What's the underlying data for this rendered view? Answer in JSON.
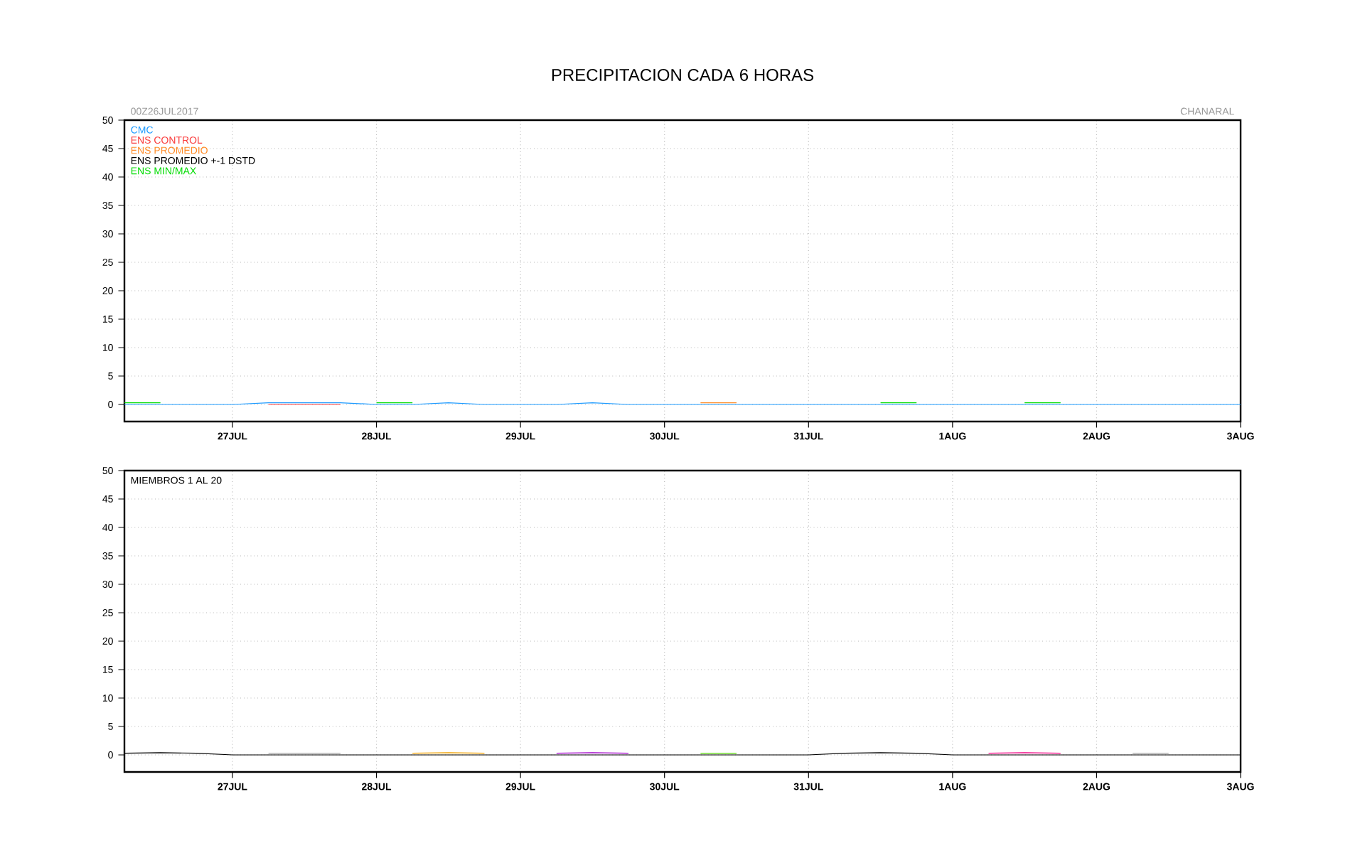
{
  "chart_data": [
    {
      "type": "line",
      "title": "PRECIPITACION CADA 6 HORAS",
      "annotations": [
        "00Z26JUL2017",
        "CHANARAL"
      ],
      "x": [
        "2017-07-26T06:00",
        "2017-07-26T12:00",
        "2017-07-26T18:00",
        "2017-07-27T00:00",
        "2017-07-27T06:00",
        "2017-07-27T12:00",
        "2017-07-27T18:00",
        "2017-07-28T00:00",
        "2017-07-28T06:00",
        "2017-07-28T12:00",
        "2017-07-28T18:00",
        "2017-07-29T00:00",
        "2017-07-29T06:00",
        "2017-07-29T12:00",
        "2017-07-29T18:00",
        "2017-07-30T00:00",
        "2017-07-30T06:00",
        "2017-07-30T12:00",
        "2017-07-30T18:00",
        "2017-07-31T00:00",
        "2017-07-31T06:00",
        "2017-07-31T12:00",
        "2017-07-31T18:00",
        "2017-08-01T00:00",
        "2017-08-01T06:00",
        "2017-08-01T12:00",
        "2017-08-01T18:00",
        "2017-08-02T00:00",
        "2017-08-02T06:00",
        "2017-08-02T12:00",
        "2017-08-02T18:00",
        "2017-08-03T00:00"
      ],
      "series": [
        {
          "name": "ENS MIN/MAX",
          "color": "#00dc00",
          "values": [
            0.3,
            0.3,
            null,
            null,
            null,
            null,
            null,
            0.3,
            0.3,
            null,
            null,
            null,
            null,
            null,
            null,
            null,
            null,
            null,
            null,
            null,
            null,
            0.3,
            0.3,
            null,
            null,
            0.3,
            0.3,
            null,
            null,
            null,
            null,
            null
          ]
        },
        {
          "name": "ENS PROMEDIO +-1 DSTD",
          "color": "#000000",
          "values": [
            null,
            null,
            null,
            null,
            null,
            null,
            null,
            null,
            null,
            null,
            null,
            null,
            null,
            null,
            null,
            null,
            null,
            null,
            null,
            null,
            null,
            null,
            null,
            null,
            null,
            null,
            null,
            null,
            null,
            null,
            null,
            null
          ]
        },
        {
          "name": "ENS PROMEDIO",
          "color": "#ff8c28",
          "values": [
            null,
            null,
            null,
            null,
            null,
            null,
            null,
            null,
            null,
            null,
            null,
            null,
            null,
            null,
            null,
            null,
            0.3,
            0.3,
            null,
            null,
            null,
            null,
            null,
            null,
            null,
            null,
            null,
            null,
            null,
            null,
            null,
            null
          ]
        },
        {
          "name": "ENS CONTROL",
          "color": "#fa3c3c",
          "values": [
            null,
            null,
            null,
            null,
            0,
            0,
            0,
            null,
            null,
            null,
            null,
            null,
            null,
            null,
            null,
            null,
            null,
            null,
            null,
            null,
            null,
            null,
            null,
            null,
            null,
            null,
            null,
            null,
            null,
            null,
            null,
            null
          ]
        },
        {
          "name": "CMC",
          "color": "#1e9bff",
          "values": [
            0,
            0,
            0,
            0,
            0.3,
            0.3,
            0.3,
            0,
            0,
            0.3,
            0,
            0,
            0,
            0.3,
            0,
            0,
            0,
            0,
            0,
            0,
            0,
            0,
            0,
            0,
            0,
            0,
            0,
            0,
            0,
            0,
            0,
            0
          ]
        }
      ],
      "xlim": [
        "2017-07-26T06:00",
        "2017-08-03"
      ],
      "xticks": [
        {
          "value": "2017-07-27",
          "label": "27JUL"
        },
        {
          "value": "2017-07-28",
          "label": "28JUL"
        },
        {
          "value": "2017-07-29",
          "label": "29JUL"
        },
        {
          "value": "2017-07-30",
          "label": "30JUL"
        },
        {
          "value": "2017-07-31",
          "label": "31JUL"
        },
        {
          "value": "2017-08-01",
          "label": "1AUG"
        },
        {
          "value": "2017-08-02",
          "label": "2AUG"
        },
        {
          "value": "2017-08-03",
          "label": "3AUG"
        }
      ],
      "ylim": [
        -3,
        50
      ],
      "yticks": [
        0,
        5,
        10,
        15,
        20,
        25,
        30,
        35,
        40,
        45,
        50
      ],
      "grid": true,
      "legend": "top left"
    },
    {
      "type": "line",
      "annotations": [
        "MIEMBROS 1 AL 20"
      ],
      "x": [
        "2017-07-26T06:00",
        "2017-07-26T12:00",
        "2017-07-26T18:00",
        "2017-07-27T00:00",
        "2017-07-27T06:00",
        "2017-07-27T12:00",
        "2017-07-27T18:00",
        "2017-07-28T00:00",
        "2017-07-28T06:00",
        "2017-07-28T12:00",
        "2017-07-28T18:00",
        "2017-07-29T00:00",
        "2017-07-29T06:00",
        "2017-07-29T12:00",
        "2017-07-29T18:00",
        "2017-07-30T00:00",
        "2017-07-30T06:00",
        "2017-07-30T12:00",
        "2017-07-30T18:00",
        "2017-07-31T00:00",
        "2017-07-31T06:00",
        "2017-07-31T12:00",
        "2017-07-31T18:00",
        "2017-08-01T00:00",
        "2017-08-01T06:00",
        "2017-08-01T12:00",
        "2017-08-01T18:00",
        "2017-08-02T00:00",
        "2017-08-02T06:00",
        "2017-08-02T12:00",
        "2017-08-02T18:00",
        "2017-08-03T00:00"
      ],
      "series": [
        {
          "color": "#f0a000",
          "values": [
            null,
            null,
            null,
            null,
            null,
            null,
            null,
            null,
            0.3,
            0.4,
            0.3,
            null,
            null,
            null,
            null,
            null,
            null,
            null,
            null,
            null,
            null,
            null,
            null,
            null,
            null,
            null,
            null,
            null,
            null,
            null,
            null,
            null
          ]
        },
        {
          "color": "#a0a0a0",
          "values": [
            null,
            null,
            null,
            null,
            0.3,
            0.3,
            0.3,
            null,
            null,
            null,
            null,
            null,
            null,
            null,
            null,
            null,
            null,
            null,
            null,
            null,
            null,
            null,
            null,
            null,
            null,
            null,
            null,
            null,
            0.3,
            0.3,
            null,
            null
          ]
        },
        {
          "color": "#a000c8",
          "values": [
            null,
            null,
            null,
            null,
            null,
            null,
            null,
            null,
            null,
            null,
            null,
            null,
            0.3,
            0.4,
            0.3,
            null,
            null,
            null,
            null,
            null,
            null,
            null,
            null,
            null,
            null,
            null,
            null,
            null,
            null,
            null,
            null,
            null
          ]
        },
        {
          "color": "#f00082",
          "values": [
            null,
            null,
            null,
            null,
            null,
            null,
            null,
            null,
            null,
            null,
            null,
            null,
            null,
            null,
            null,
            null,
            null,
            null,
            null,
            null,
            null,
            null,
            null,
            null,
            0.3,
            0.4,
            0.3,
            null,
            null,
            null,
            null,
            null
          ]
        },
        {
          "color": "#50d200",
          "values": [
            null,
            null,
            null,
            null,
            null,
            null,
            null,
            null,
            null,
            null,
            null,
            null,
            null,
            null,
            null,
            null,
            0.3,
            0.3,
            null,
            null,
            null,
            null,
            null,
            null,
            null,
            null,
            null,
            null,
            null,
            null,
            null,
            null
          ]
        },
        {
          "color": "#000000",
          "values": [
            0.3,
            0.4,
            0.3,
            0,
            0,
            0,
            0,
            0,
            0,
            0,
            0,
            0,
            0,
            0,
            0,
            0,
            0,
            0,
            0,
            0,
            0.3,
            0.4,
            0.3,
            0,
            0,
            0,
            0,
            0,
            0,
            0,
            0,
            0
          ]
        }
      ],
      "xlim": [
        "2017-07-26T06:00",
        "2017-08-03"
      ],
      "xticks": [
        {
          "value": "2017-07-27",
          "label": "27JUL"
        },
        {
          "value": "2017-07-28",
          "label": "28JUL"
        },
        {
          "value": "2017-07-29",
          "label": "29JUL"
        },
        {
          "value": "2017-07-30",
          "label": "30JUL"
        },
        {
          "value": "2017-07-31",
          "label": "31JUL"
        },
        {
          "value": "2017-08-01",
          "label": "1AUG"
        },
        {
          "value": "2017-08-02",
          "label": "2AUG"
        },
        {
          "value": "2017-08-03",
          "label": "3AUG"
        }
      ],
      "ylim": [
        -3,
        50
      ],
      "yticks": [
        0,
        5,
        10,
        15,
        20,
        25,
        30,
        35,
        40,
        45,
        50
      ],
      "grid": true
    }
  ]
}
